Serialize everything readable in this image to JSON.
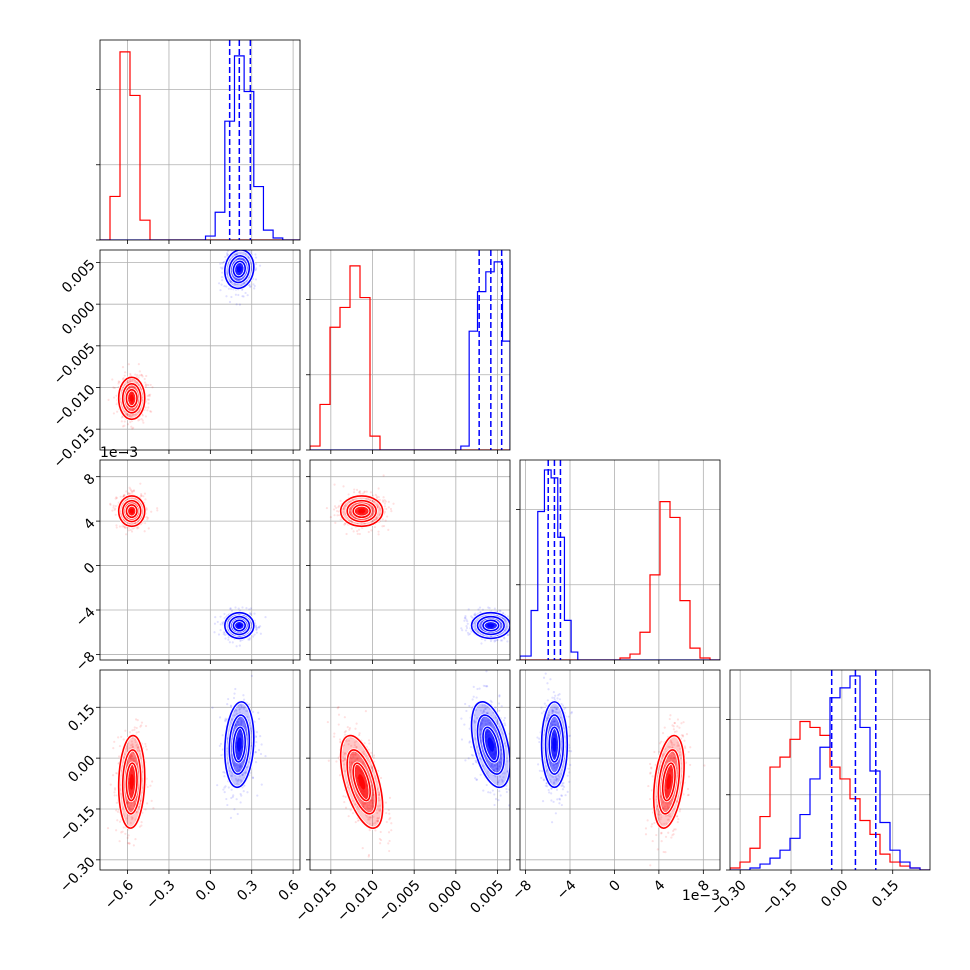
{
  "chart_data": {
    "type": "corner",
    "grid": true,
    "parameters": [
      {
        "range": [
          -0.8,
          0.65
        ],
        "ticks": [
          -0.6,
          -0.3,
          0.0,
          0.3,
          0.6
        ],
        "tick_labels": [
          "−0.6",
          "−0.3",
          "0.0",
          "0.3",
          "0.6"
        ],
        "offset_label": ""
      },
      {
        "range": [
          -0.0175,
          0.0065
        ],
        "ticks": [
          -0.015,
          -0.01,
          -0.005,
          0.0,
          0.005
        ],
        "tick_labels": [
          "−0.015",
          "−0.010",
          "−0.005",
          "0.000",
          "0.005"
        ],
        "offset_label": ""
      },
      {
        "range": [
          -8.5,
          9.5
        ],
        "ticks": [
          -8,
          -4,
          0,
          4,
          8
        ],
        "tick_labels": [
          "−8",
          "−4",
          "0",
          "4",
          "8"
        ],
        "offset_label": "1e−3"
      },
      {
        "range": [
          -0.33,
          0.26
        ],
        "ticks": [
          -0.3,
          -0.15,
          0.0,
          0.15
        ],
        "tick_labels": [
          "−0.30",
          "−0.15",
          "0.00",
          "0.15"
        ],
        "offset_label": ""
      }
    ],
    "series": [
      {
        "color": "#ff0000",
        "mean": [
          -0.57,
          -0.0113,
          4.9,
          -0.07
        ],
        "std": [
          0.045,
          0.0012,
          0.65,
          0.065
        ],
        "correlation": {
          "0-1": 0.0,
          "0-2": 0.0,
          "0-3": 0.1,
          "1-2": 0.0,
          "1-3": -0.55,
          "2-3": 0.35
        },
        "histograms": [
          {
            "edges": [
              -0.8,
              -0.7275,
              -0.655,
              -0.5825,
              -0.51,
              -0.4375,
              -0.365,
              -0.2925,
              -0.22,
              0.65
            ],
            "counts": [
              0,
              0.22,
              0.95,
              0.73,
              0.1,
              0.0,
              0.0,
              0.0,
              0.0
            ]
          },
          {
            "edges": [
              -0.0175,
              -0.0163,
              -0.0151,
              -0.0139,
              -0.0127,
              -0.0115,
              -0.0103,
              -0.0091,
              -0.0079,
              -0.0067,
              0.0065
            ],
            "counts": [
              0.02,
              0.23,
              0.62,
              0.72,
              0.93,
              0.77,
              0.07,
              0.0,
              0.0,
              0.0
            ]
          },
          {
            "edges": [
              -8.5,
              0.5,
              1.4,
              2.3,
              3.2,
              4.1,
              5.0,
              5.9,
              6.8,
              7.7,
              8.6,
              9.5
            ],
            "counts": [
              0,
              0.01,
              0.03,
              0.14,
              0.43,
              0.8,
              0.72,
              0.3,
              0.06,
              0.01,
              0
            ]
          },
          {
            "edges": [
              -0.33,
              -0.3005,
              -0.271,
              -0.2415,
              -0.212,
              -0.1825,
              -0.153,
              -0.1235,
              -0.094,
              -0.0645,
              -0.035,
              -0.0055,
              0.024,
              0.0535,
              0.083,
              0.1125,
              0.142,
              0.1715,
              0.201,
              0.2305,
              0.26
            ],
            "counts": [
              0.01,
              0.04,
              0.11,
              0.27,
              0.52,
              0.57,
              0.66,
              0.75,
              0.72,
              0.68,
              0.52,
              0.46,
              0.36,
              0.25,
              0.18,
              0.08,
              0.04,
              0.02,
              0.01,
              0
            ]
          }
        ]
      },
      {
        "color": "#0000ff",
        "mean": [
          0.21,
          0.0042,
          -5.4,
          0.04
        ],
        "std": [
          0.05,
          0.0011,
          0.55,
          0.06
        ],
        "correlation": {
          "0-1": 0.1,
          "0-2": 0.0,
          "0-3": 0.15,
          "1-2": 0.0,
          "1-3": -0.45,
          "2-3": 0.0
        },
        "quantiles": [
          [
            0.14,
            0.21,
            0.29
          ],
          [
            0.0028,
            0.0042,
            0.0055
          ],
          [
            -5.96,
            -5.4,
            -4.86
          ],
          [
            -0.03,
            0.04,
            0.1
          ]
        ],
        "histograms": [
          {
            "edges": [
              -0.8,
              -0.035,
              0.035,
              0.105,
              0.175,
              0.245,
              0.315,
              0.385,
              0.455,
              0.525,
              0.65
            ],
            "counts": [
              0,
              0.02,
              0.14,
              0.6,
              0.93,
              0.75,
              0.27,
              0.05,
              0.01,
              0
            ]
          },
          {
            "edges": [
              -0.0175,
              0.0006,
              0.0016,
              0.0026,
              0.0036,
              0.0046,
              0.0056,
              0.0065
            ],
            "counts": [
              0,
              0.02,
              0.6,
              0.8,
              0.9,
              0.95,
              0.55
            ]
          },
          {
            "edges": [
              -8.5,
              -7.5,
              -6.9,
              -6.3,
              -5.7,
              -5.1,
              -4.5,
              -3.9,
              -3.3,
              9.5
            ],
            "counts": [
              0.02,
              0.25,
              0.75,
              0.96,
              0.92,
              0.62,
              0.2,
              0.04,
              0
            ]
          },
          {
            "edges": [
              -0.33,
              -0.271,
              -0.2415,
              -0.212,
              -0.1825,
              -0.153,
              -0.1235,
              -0.094,
              -0.0645,
              -0.035,
              -0.0055,
              0.024,
              0.0535,
              0.083,
              0.1125,
              0.142,
              0.1715,
              0.201,
              0.2305,
              0.26
            ],
            "counts": [
              0.0,
              0.01,
              0.03,
              0.06,
              0.1,
              0.16,
              0.28,
              0.46,
              0.62,
              0.87,
              0.92,
              0.98,
              0.72,
              0.5,
              0.24,
              0.1,
              0.04,
              0.01,
              0
            ]
          }
        ]
      }
    ]
  }
}
